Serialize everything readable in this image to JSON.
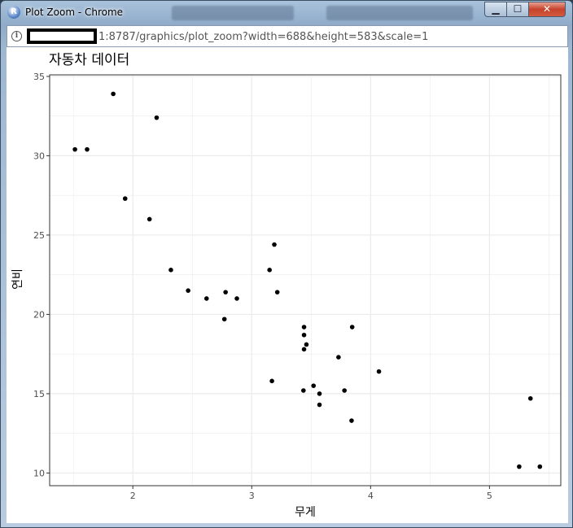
{
  "window": {
    "title": "Plot Zoom - Chrome",
    "app_icon_letter": "R"
  },
  "address_bar": {
    "url": "1:8787/graphics/plot_zoom?width=688&height=583&scale=1"
  },
  "chart_data": {
    "type": "scatter",
    "title": "자동차 데이터",
    "xlabel": "무게",
    "ylabel": "연비",
    "xlim": [
      1.3,
      5.6
    ],
    "ylim": [
      9.2,
      35.1
    ],
    "xticks": [
      2,
      3,
      4,
      5
    ],
    "yticks": [
      10,
      15,
      20,
      25,
      30,
      35
    ],
    "grid": true,
    "point_color": "#000000",
    "panel_border_color": "#333333",
    "grid_color": "#ebebeb",
    "points": [
      {
        "x": 1.513,
        "y": 30.4
      },
      {
        "x": 1.615,
        "y": 30.4
      },
      {
        "x": 1.835,
        "y": 33.9
      },
      {
        "x": 1.935,
        "y": 27.3
      },
      {
        "x": 2.14,
        "y": 26.0
      },
      {
        "x": 2.2,
        "y": 32.4
      },
      {
        "x": 2.32,
        "y": 22.8
      },
      {
        "x": 2.465,
        "y": 21.5
      },
      {
        "x": 2.62,
        "y": 21.0
      },
      {
        "x": 2.77,
        "y": 19.7
      },
      {
        "x": 2.78,
        "y": 21.4
      },
      {
        "x": 2.875,
        "y": 21.0
      },
      {
        "x": 3.15,
        "y": 22.8
      },
      {
        "x": 3.17,
        "y": 15.8
      },
      {
        "x": 3.19,
        "y": 24.4
      },
      {
        "x": 3.215,
        "y": 21.4
      },
      {
        "x": 3.435,
        "y": 15.2
      },
      {
        "x": 3.44,
        "y": 18.7
      },
      {
        "x": 3.44,
        "y": 19.2
      },
      {
        "x": 3.44,
        "y": 17.8
      },
      {
        "x": 3.46,
        "y": 18.1
      },
      {
        "x": 3.52,
        "y": 15.5
      },
      {
        "x": 3.57,
        "y": 15.0
      },
      {
        "x": 3.57,
        "y": 14.3
      },
      {
        "x": 3.73,
        "y": 17.3
      },
      {
        "x": 3.78,
        "y": 15.2
      },
      {
        "x": 3.84,
        "y": 13.3
      },
      {
        "x": 3.845,
        "y": 19.2
      },
      {
        "x": 4.07,
        "y": 16.4
      },
      {
        "x": 5.25,
        "y": 10.4
      },
      {
        "x": 5.345,
        "y": 14.7
      },
      {
        "x": 5.424,
        "y": 10.4
      }
    ]
  }
}
